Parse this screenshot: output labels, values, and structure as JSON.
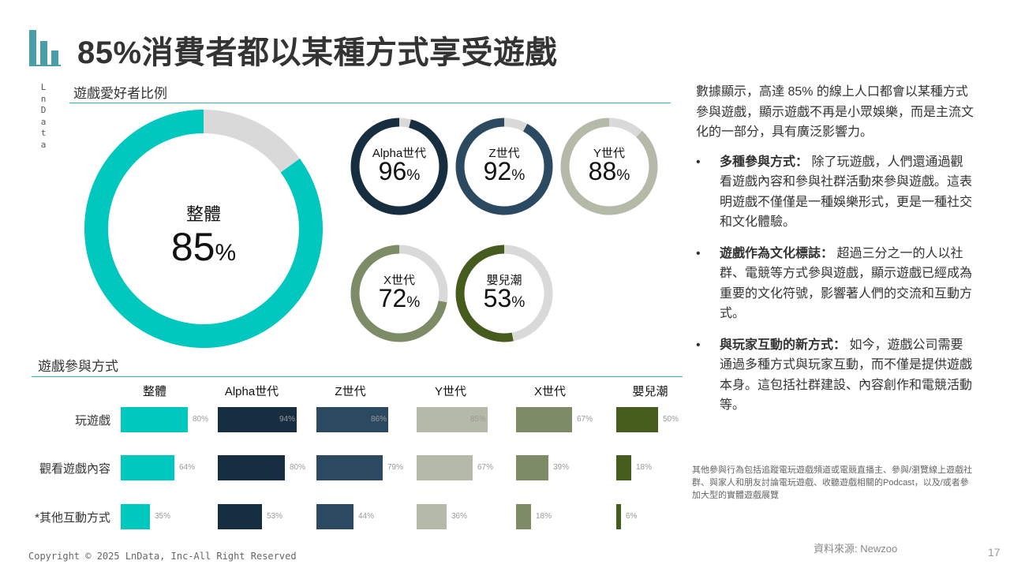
{
  "title": "85%消費者都以某種方式享受遊戲",
  "side_brand": "LnData",
  "section1_title": "遊戲愛好者比例",
  "section2_title": "遊戲參與方式",
  "chart_data": [
    {
      "type": "donut",
      "title": "遊戲愛好者比例",
      "unit": "%",
      "series": [
        {
          "name": "整體",
          "value": 85,
          "color": "#00c8be"
        },
        {
          "name": "Alpha世代",
          "value": 96,
          "color": "#172d40"
        },
        {
          "name": "Z世代",
          "value": 92,
          "color": "#2b4a62"
        },
        {
          "name": "Y世代",
          "value": 88,
          "color": "#b5b9a8"
        },
        {
          "name": "X世代",
          "value": 72,
          "color": "#7d8c66"
        },
        {
          "name": "嬰兒潮",
          "value": 53,
          "color": "#455c1c"
        }
      ],
      "remainder_color": "#d9d9d9"
    },
    {
      "type": "bar",
      "orientation": "horizontal",
      "title": "遊戲參與方式",
      "unit": "%",
      "categories": [
        "玩遊戲",
        "觀看遊戲內容",
        "*其他互動方式"
      ],
      "series": [
        {
          "name": "整體",
          "color": "#00c8be",
          "values": [
            80,
            64,
            35
          ]
        },
        {
          "name": "Alpha世代",
          "color": "#172d40",
          "values": [
            94,
            80,
            53
          ]
        },
        {
          "name": "Z世代",
          "color": "#2b4a62",
          "values": [
            86,
            79,
            44
          ]
        },
        {
          "name": "Y世代",
          "color": "#b5b9a8",
          "values": [
            85,
            67,
            36
          ]
        },
        {
          "name": "X世代",
          "color": "#7d8c66",
          "values": [
            67,
            39,
            18
          ]
        },
        {
          "name": "嬰兒潮",
          "color": "#455c1c",
          "values": [
            50,
            18,
            6
          ]
        }
      ]
    }
  ],
  "right_panel": {
    "intro": "數據顯示，高達 85% 的線上人口都會以某種方式參與遊戲，顯示遊戲不再是小眾娛樂，而是主流文化的一部分，具有廣泛影響力。",
    "bullets": [
      {
        "heading": "多種參與方式：",
        "text": " 除了玩遊戲，人們還通過觀看遊戲內容和參與社群活動來參與遊戲。這表明遊戲不僅僅是一種娛樂形式，更是一種社交和文化體驗。"
      },
      {
        "heading": "遊戲作為文化標誌：",
        "text": " 超過三分之一的人以社群、電競等方式參與遊戲，顯示遊戲已經成為重要的文化符號，影響著人們的交流和互動方式。"
      },
      {
        "heading": "與玩家互動的新方式：",
        "text": " 如今，遊戲公司需要通過多種方式與玩家互動，而不僅是提供遊戲本身。這包括社群建設、內容創作和電競活動等。"
      }
    ]
  },
  "footnote": "其他參與行為包括追蹤電玩遊戲頻道或電競直播主、參與/瀏覽線上遊戲社群、與家人和朋友討論電玩遊戲、收聽遊戲相關的Podcast，以及/或者參加大型的實體遊戲展覽",
  "source": "資料來源: Newzoo",
  "copyright": "Copyright © 2025 LnData, Inc-All Right Reserved",
  "page_number": "17",
  "colors": {
    "accent": "#2bbac0",
    "logo": "#4a9ea8"
  }
}
